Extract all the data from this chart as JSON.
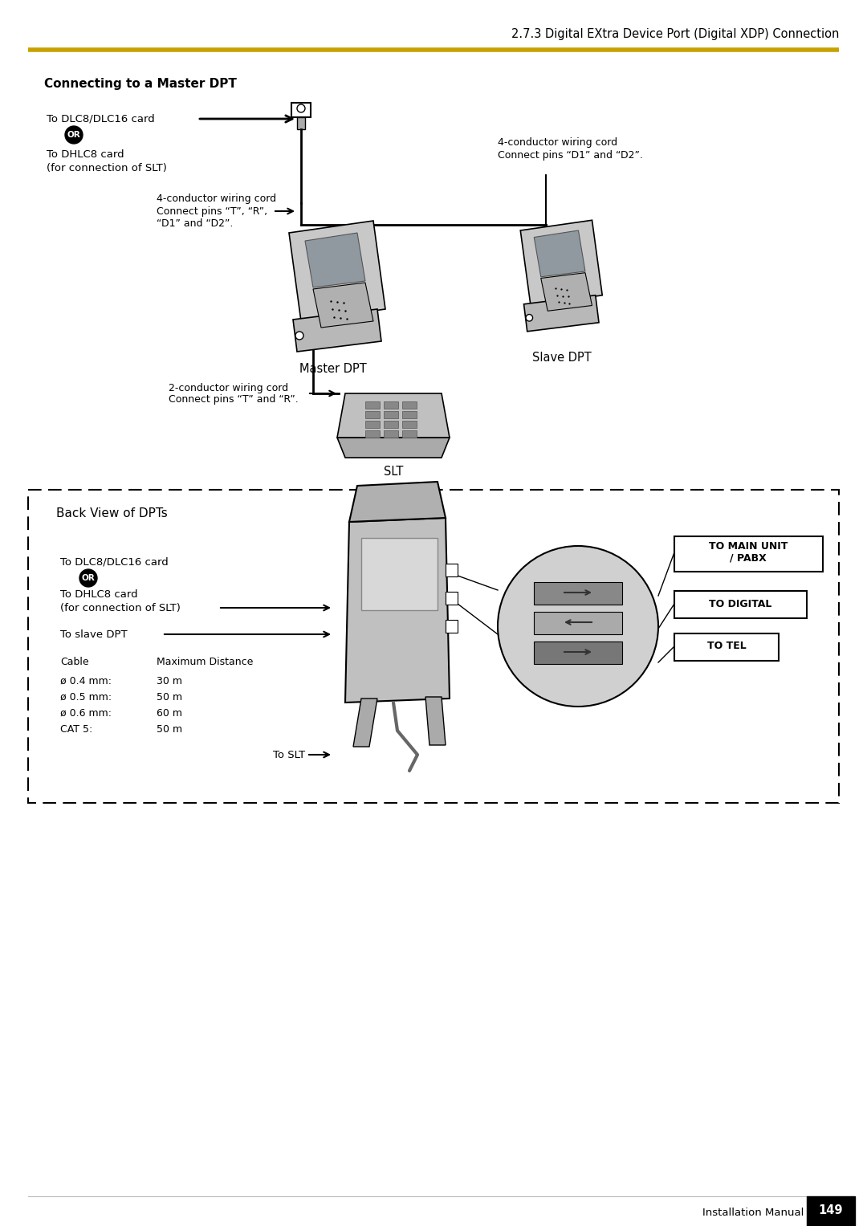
{
  "bg_color": "#ffffff",
  "page_width": 10.8,
  "page_height": 15.27,
  "header_line_color": "#C8A000",
  "header_text": "2.7.3 Digital EXtra Device Port (Digital XDP) Connection",
  "section_title": "Connecting to a Master DPT",
  "top_labels": {
    "dlc": "To DLC8/DLC16 card",
    "or": "OR",
    "dhlc": "To DHLC8 card\n(for connection of SLT)",
    "wire4_left1": "4-conductor wiring cord",
    "wire4_left2": "Connect pins “T”, “R”,",
    "wire4_left3": "“D1” and “D2”.",
    "wire4_right1": "4-conductor wiring cord",
    "wire4_right2": "Connect pins “D1” and “D2”.",
    "master": "Master DPT",
    "slave": "Slave DPT",
    "wire2_1": "2-conductor wiring cord",
    "wire2_2": "Connect pins “T” and “R”.",
    "slt": "SLT"
  },
  "bottom_labels": {
    "title": "Back View of DPTs",
    "dlc": "To DLC8/DLC16 card",
    "or": "OR",
    "dhlc": "To DHLC8 card\n(for connection of SLT)",
    "slave": "To slave DPT",
    "cable_hdr1": "Cable",
    "cable_hdr2": "Maximum Distance",
    "cable_rows": [
      [
        "ø 0.4 mm:",
        "30 m"
      ],
      [
        "ø 0.5 mm:",
        "50 m"
      ],
      [
        "ø 0.6 mm:",
        "60 m"
      ],
      [
        "CAT 5:",
        "50 m"
      ]
    ],
    "to_slt": "To SLT",
    "to_main": "TO MAIN UNIT\n/ PABX",
    "to_digital": "TO DIGITAL",
    "to_tel": "TO TEL"
  },
  "footer_text": "Installation Manual",
  "page_num": "149"
}
